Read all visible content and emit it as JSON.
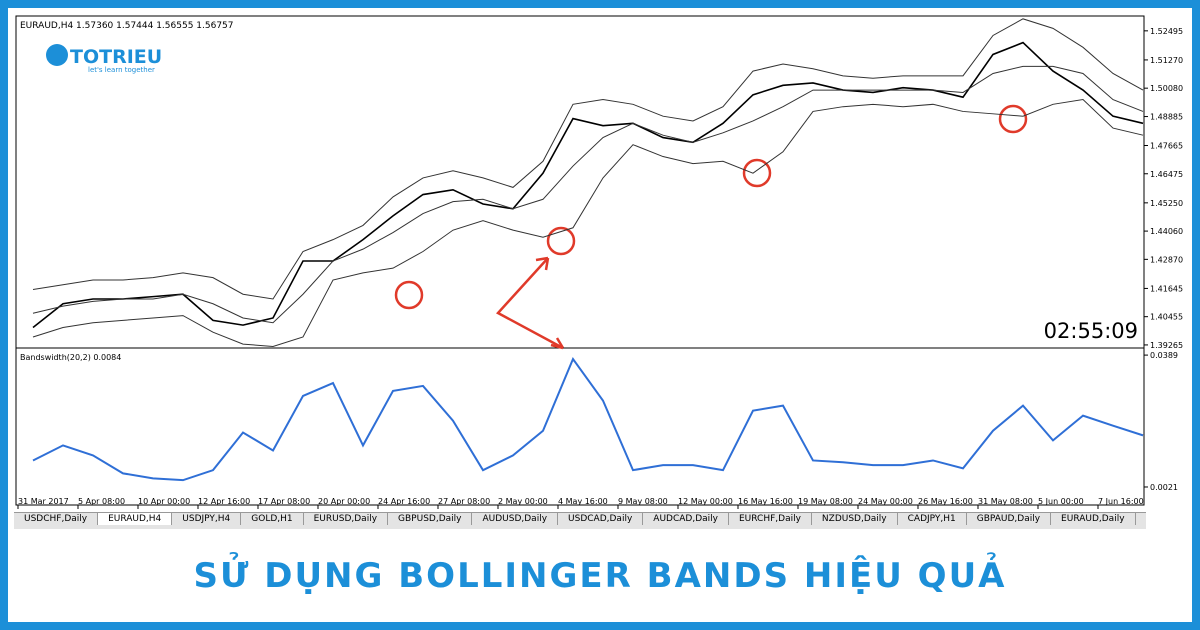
{
  "header": {
    "symbol_info": "EURAUD,H4  1.57360 1.57444 1.56555 1.56757",
    "logo": "TOTRIEU",
    "logo_tagline": "let's learn together",
    "timer": "02:55:09"
  },
  "chart_data": {
    "type": "line",
    "categories": [
      "31 Mar 2017",
      null,
      "5 Apr 08:00",
      null,
      "10 Apr 00:00",
      null,
      "12 Apr 16:00",
      null,
      "17 Apr 08:00",
      null,
      "20 Apr 00:00",
      null,
      "24 Apr 16:00",
      null,
      "27 Apr 08:00",
      null,
      "2 May 00:00",
      null,
      "4 May 16:00",
      null,
      "9 May 08:00",
      null,
      "12 May 00:00",
      null,
      "16 May 16:00",
      null,
      "19 May 08:00",
      null,
      "24 May 00:00",
      null,
      "26 May 16:00",
      null,
      "31 May 08:00",
      null,
      "5 Jun 00:00",
      null,
      "7 Jun 16:00",
      null
    ],
    "ylim": [
      1.3922,
      1.5312
    ],
    "yticks": [
      {
        "value": 1.52495,
        "label": "1.52495"
      },
      {
        "value": 1.5127,
        "label": "1.51270"
      },
      {
        "value": 1.5008,
        "label": "1.50080"
      },
      {
        "value": 1.48885,
        "label": "1.48885"
      },
      {
        "value": 1.47665,
        "label": "1.47665"
      },
      {
        "value": 1.46475,
        "label": "1.46475"
      },
      {
        "value": 1.4525,
        "label": "1.45250"
      },
      {
        "value": 1.4406,
        "label": "1.44060"
      },
      {
        "value": 1.4287,
        "label": "1.42870"
      },
      {
        "value": 1.41645,
        "label": "1.41645"
      },
      {
        "value": 1.40455,
        "label": "1.40455"
      },
      {
        "value": 1.39265,
        "label": "1.39265"
      }
    ],
    "series": [
      {
        "name": "Price",
        "color": "#000000",
        "values": [
          1.4,
          1.41,
          1.412,
          1.412,
          1.413,
          1.414,
          1.403,
          1.401,
          1.404,
          1.428,
          1.428,
          1.437,
          1.447,
          1.456,
          1.458,
          1.452,
          1.45,
          1.465,
          1.488,
          1.485,
          1.486,
          1.48,
          1.478,
          1.486,
          1.498,
          1.502,
          1.503,
          1.5,
          1.499,
          1.501,
          1.5,
          1.497,
          1.515,
          1.52,
          1.508,
          1.5,
          1.489,
          1.486
        ]
      },
      {
        "name": "Upper",
        "color": "#333333",
        "values": [
          1.416,
          1.418,
          1.42,
          1.42,
          1.421,
          1.423,
          1.421,
          1.414,
          1.412,
          1.432,
          1.437,
          1.443,
          1.455,
          1.463,
          1.466,
          1.463,
          1.459,
          1.47,
          1.494,
          1.496,
          1.494,
          1.489,
          1.487,
          1.493,
          1.508,
          1.511,
          1.509,
          1.506,
          1.505,
          1.506,
          1.506,
          1.506,
          1.523,
          1.53,
          1.526,
          1.518,
          1.507,
          1.5
        ]
      },
      {
        "name": "Middle",
        "color": "#333333",
        "values": [
          1.406,
          1.409,
          1.411,
          1.412,
          1.412,
          1.414,
          1.41,
          1.404,
          1.402,
          1.414,
          1.428,
          1.433,
          1.44,
          1.448,
          1.453,
          1.454,
          1.45,
          1.454,
          1.468,
          1.48,
          1.486,
          1.481,
          1.478,
          1.482,
          1.487,
          1.493,
          1.5,
          1.5,
          1.5,
          1.5,
          1.5,
          1.499,
          1.507,
          1.51,
          1.51,
          1.507,
          1.496,
          1.491
        ]
      },
      {
        "name": "Lower",
        "color": "#333333",
        "values": [
          1.396,
          1.4,
          1.402,
          1.403,
          1.404,
          1.405,
          1.398,
          1.393,
          1.392,
          1.396,
          1.42,
          1.423,
          1.425,
          1.432,
          1.441,
          1.445,
          1.441,
          1.438,
          1.442,
          1.463,
          1.477,
          1.472,
          1.469,
          1.47,
          1.465,
          1.474,
          1.491,
          1.493,
          1.494,
          1.493,
          1.494,
          1.491,
          1.49,
          1.489,
          1.494,
          1.496,
          1.484,
          1.481
        ]
      }
    ]
  },
  "indicator": {
    "type": "line",
    "label": "Bandswidth(20,2) 0.0084",
    "color": "#2f6fd6",
    "ylim": [
      0.0007,
      0.0406
    ],
    "yticks": [
      0.0389,
      0.0021
    ],
    "values": [
      0.0095,
      0.0137,
      0.0109,
      0.0059,
      0.0045,
      0.004,
      0.0068,
      0.0173,
      0.0123,
      0.0275,
      0.0311,
      0.0137,
      0.0289,
      0.0303,
      0.0206,
      0.0068,
      0.0109,
      0.0178,
      0.0378,
      0.0262,
      0.0068,
      0.0082,
      0.0082,
      0.0068,
      0.0234,
      0.0248,
      0.0095,
      0.009,
      0.0082,
      0.0082,
      0.0095,
      0.0073,
      0.0178,
      0.0248,
      0.0151,
      0.022,
      0.0192,
      0.0165
    ]
  },
  "tabs": [
    "USDCHF,Daily",
    "EURAUD,H4",
    "USDJPY,H4",
    "GOLD,H1",
    "EURUSD,Daily",
    "GBPUSD,Daily",
    "AUDUSD,Daily",
    "USDCAD,Daily",
    "AUDCAD,Daily",
    "EURCHF,Daily",
    "NZDUSD,Daily",
    "CADJPY,H1",
    "GBPAUD,Daily",
    "EURAUD,Daily"
  ],
  "banner": "SỬ DỤNG BOLLINGER BANDS HIỆU QUẢ"
}
